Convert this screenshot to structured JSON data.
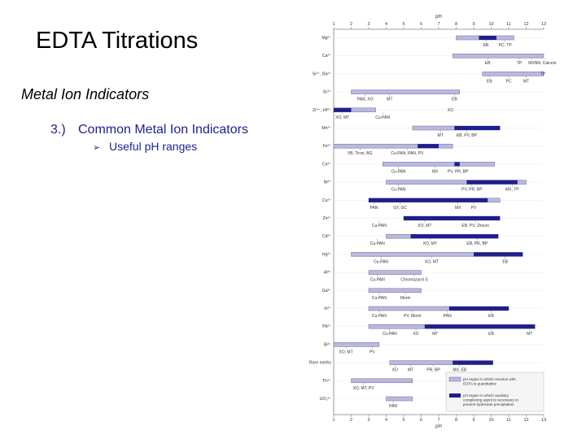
{
  "slide": {
    "title": "EDTA Titrations",
    "subtitle": "Metal Ion Indicators",
    "point_number": "3.)",
    "point_text": "Common Metal Ion Indicators",
    "bullet_text": "Useful pH ranges"
  },
  "chart_data": {
    "type": "range-bar",
    "axis_label_top": "pH",
    "axis_label_bottom": "pH",
    "x_ticks": [
      1,
      2,
      3,
      4,
      5,
      6,
      7,
      8,
      9,
      10,
      11,
      12,
      13
    ],
    "xlim": [
      1,
      13
    ],
    "rows": [
      {
        "ion": "Mg²⁺",
        "bars": [
          {
            "from": 8,
            "to": 11.3,
            "kind": "light"
          },
          {
            "from": 9.3,
            "to": 10.3,
            "kind": "indicator"
          }
        ],
        "labels": [
          {
            "text": "EB",
            "x": 9.7,
            "pos": "below"
          },
          {
            "text": "PC, TP",
            "x": 10.8,
            "pos": "below"
          }
        ]
      },
      {
        "ion": "Ca²⁺",
        "bars": [
          {
            "from": 7.8,
            "to": 13,
            "kind": "light"
          }
        ],
        "labels": [
          {
            "text": "EB",
            "x": 9.8,
            "pos": "below"
          },
          {
            "text": "TP",
            "x": 11.6,
            "pos": "below"
          },
          {
            "text": "MX",
            "x": 12.3,
            "pos": "below"
          },
          {
            "text": "NN, Calcein",
            "x": 13.1,
            "pos": "below"
          }
        ]
      },
      {
        "ion": "Sr²⁺, Ba²⁺",
        "bars": [
          {
            "from": 9.5,
            "to": 13,
            "kind": "light"
          }
        ],
        "labels": [
          {
            "text": "TP",
            "x": 12.8,
            "pos": "right"
          },
          {
            "text": "EB",
            "x": 9.9,
            "pos": "below"
          },
          {
            "text": "PC",
            "x": 11,
            "pos": "below"
          },
          {
            "text": "MT",
            "x": 12,
            "pos": "below"
          }
        ]
      },
      {
        "ion": "Sc³⁺",
        "bars": [
          {
            "from": 2,
            "to": 8.2,
            "kind": "light"
          }
        ],
        "labels": [
          {
            "text": "PAN, XO",
            "x": 2.8,
            "pos": "below"
          },
          {
            "text": "MT",
            "x": 4.2,
            "pos": "below"
          },
          {
            "text": "EB",
            "x": 7.9,
            "pos": "below"
          }
        ]
      },
      {
        "ion": "Zr⁴⁺, Hf⁴⁺",
        "bars": [
          {
            "from": 1,
            "to": 3.4,
            "kind": "light"
          },
          {
            "from": 1,
            "to": 2,
            "kind": "indicator"
          }
        ],
        "labels": [
          {
            "text": "XO, MT",
            "x": 1.5,
            "pos": "below"
          },
          {
            "text": "Cu-PAN",
            "x": 3.8,
            "pos": "below"
          },
          {
            "text": "XO",
            "x": 7.5,
            "pos": "right"
          }
        ]
      },
      {
        "ion": "Mn²⁺",
        "bars": [
          {
            "from": 5.5,
            "to": 10.5,
            "kind": "light"
          },
          {
            "from": 7.9,
            "to": 10.5,
            "kind": "indicator"
          }
        ],
        "labels": [
          {
            "text": "MT",
            "x": 7.1,
            "pos": "below"
          },
          {
            "text": "EB, PV, BP",
            "x": 8.6,
            "pos": "below"
          }
        ]
      },
      {
        "ion": "Fe³⁺",
        "bars": [
          {
            "from": 1,
            "to": 7.8,
            "kind": "light"
          },
          {
            "from": 5.8,
            "to": 7,
            "kind": "indicator"
          }
        ],
        "labels": [
          {
            "text": "VB, Tiron, BG",
            "x": 2.5,
            "pos": "below"
          },
          {
            "text": "Cu-PAN, PAN, PV",
            "x": 5.2,
            "pos": "below"
          }
        ]
      },
      {
        "ion": "Co²⁺",
        "bars": [
          {
            "from": 3.8,
            "to": 10.2,
            "kind": "light"
          },
          {
            "from": 7.9,
            "to": 8.2,
            "kind": "indicator"
          }
        ],
        "labels": [
          {
            "text": "Cu-PAN",
            "x": 4.7,
            "pos": "below"
          },
          {
            "text": "MX",
            "x": 6.8,
            "pos": "below"
          },
          {
            "text": "PV, PR, BP",
            "x": 8.1,
            "pos": "below"
          }
        ]
      },
      {
        "ion": "Ni²⁺",
        "bars": [
          {
            "from": 4,
            "to": 12,
            "kind": "light"
          },
          {
            "from": 8.6,
            "to": 11.5,
            "kind": "indicator"
          }
        ],
        "labels": [
          {
            "text": "Cu-PAN",
            "x": 4.7,
            "pos": "below"
          },
          {
            "text": "PV, PR, BP",
            "x": 8.9,
            "pos": "below"
          },
          {
            "text": "MX, TP",
            "x": 11.2,
            "pos": "below"
          }
        ]
      },
      {
        "ion": "Cu²⁺",
        "bars": [
          {
            "from": 3,
            "to": 10.5,
            "kind": "light"
          },
          {
            "from": 3,
            "to": 9.8,
            "kind": "indicator"
          }
        ],
        "labels": [
          {
            "text": "PAN",
            "x": 3.3,
            "pos": "below"
          },
          {
            "text": "GT, GC",
            "x": 4.8,
            "pos": "below"
          },
          {
            "text": "MX",
            "x": 8.1,
            "pos": "below"
          },
          {
            "text": "PV",
            "x": 9,
            "pos": "below"
          }
        ]
      },
      {
        "ion": "Zn²⁺",
        "bars": [
          {
            "from": 5,
            "to": 10.5,
            "kind": "light"
          },
          {
            "from": 5,
            "to": 10.5,
            "kind": "indicator"
          }
        ],
        "labels": [
          {
            "text": "Cu-PAN",
            "x": 3.6,
            "pos": "below"
          },
          {
            "text": "XO, MT",
            "x": 6.2,
            "pos": "below"
          },
          {
            "text": "EB, PV, Zincon",
            "x": 9.1,
            "pos": "below"
          }
        ]
      },
      {
        "ion": "Cd²⁺",
        "bars": [
          {
            "from": 4,
            "to": 10.4,
            "kind": "light"
          },
          {
            "from": 5.4,
            "to": 10.4,
            "kind": "indicator"
          }
        ],
        "labels": [
          {
            "text": "Cu-PAN",
            "x": 3.5,
            "pos": "below"
          },
          {
            "text": "XO, MT",
            "x": 6.5,
            "pos": "below"
          },
          {
            "text": "EB, PR, BP",
            "x": 9.2,
            "pos": "below"
          }
        ]
      },
      {
        "ion": "Hg²⁺",
        "bars": [
          {
            "from": 2,
            "to": 11.8,
            "kind": "light"
          },
          {
            "from": 9,
            "to": 11.8,
            "kind": "indicator"
          }
        ],
        "labels": [
          {
            "text": "EB",
            "x": 10.8,
            "pos": "below"
          },
          {
            "text": "Cu-PAN",
            "x": 3.7,
            "pos": "below"
          },
          {
            "text": "XO, MT",
            "x": 6.6,
            "pos": "below"
          }
        ]
      },
      {
        "ion": "Al³⁺",
        "bars": [
          {
            "from": 3,
            "to": 6,
            "kind": "light"
          }
        ],
        "labels": [
          {
            "text": "Cu-PAN",
            "x": 3.5,
            "pos": "below"
          },
          {
            "text": "Chromazurol S",
            "x": 5.6,
            "pos": "below"
          }
        ]
      },
      {
        "ion": "Ga³⁺",
        "bars": [
          {
            "from": 3,
            "to": 6,
            "kind": "light"
          }
        ],
        "labels": [
          {
            "text": "Cu-PAN",
            "x": 3.6,
            "pos": "below"
          },
          {
            "text": "Morin",
            "x": 5.1,
            "pos": "below"
          }
        ]
      },
      {
        "ion": "In³⁺",
        "bars": [
          {
            "from": 3,
            "to": 11,
            "kind": "light"
          },
          {
            "from": 7.6,
            "to": 11,
            "kind": "indicator"
          }
        ],
        "labels": [
          {
            "text": "Cu-PAN",
            "x": 3.6,
            "pos": "below"
          },
          {
            "text": "PV, Morin",
            "x": 5.5,
            "pos": "below"
          },
          {
            "text": "PAN",
            "x": 7.5,
            "pos": "below"
          },
          {
            "text": "EB",
            "x": 10,
            "pos": "below"
          }
        ]
      },
      {
        "ion": "Pb²⁺",
        "bars": [
          {
            "from": 3,
            "to": 12.5,
            "kind": "light"
          },
          {
            "from": 6.2,
            "to": 12.5,
            "kind": "indicator"
          }
        ],
        "labels": [
          {
            "text": "MT",
            "x": 6.8,
            "pos": "below"
          },
          {
            "text": "Cu-PAN",
            "x": 4.2,
            "pos": "below"
          },
          {
            "text": "XO",
            "x": 5.7,
            "pos": "below"
          },
          {
            "text": "EB",
            "x": 10,
            "pos": "below"
          },
          {
            "text": "MT",
            "x": 12.2,
            "pos": "below"
          }
        ]
      },
      {
        "ion": "Bi³⁺",
        "bars": [
          {
            "from": 1,
            "to": 3.6,
            "kind": "light"
          }
        ],
        "labels": [
          {
            "text": "XO, MT",
            "x": 1.7,
            "pos": "below"
          },
          {
            "text": "PV",
            "x": 3.2,
            "pos": "below"
          }
        ]
      },
      {
        "ion": "Rare earths",
        "bars": [
          {
            "from": 4.2,
            "to": 10.1,
            "kind": "light"
          },
          {
            "from": 7.8,
            "to": 10.1,
            "kind": "indicator"
          }
        ],
        "labels": [
          {
            "text": "XO",
            "x": 4.5,
            "pos": "below"
          },
          {
            "text": "MT",
            "x": 5.4,
            "pos": "below"
          },
          {
            "text": "PR, BP",
            "x": 6.7,
            "pos": "below"
          },
          {
            "text": "MX, EB",
            "x": 8.2,
            "pos": "below"
          }
        ]
      },
      {
        "ion": "Th⁴⁺",
        "bars": [
          {
            "from": 2,
            "to": 5.5,
            "kind": "light"
          }
        ],
        "labels": [
          {
            "text": "XO, MT, PV",
            "x": 2.7,
            "pos": "below"
          }
        ]
      },
      {
        "ion": "UO₂²⁺",
        "bars": [
          {
            "from": 4,
            "to": 5.5,
            "kind": "light"
          }
        ],
        "labels": [
          {
            "text": "PAN",
            "x": 4.4,
            "pos": "below"
          }
        ]
      }
    ],
    "legend": [
      {
        "kind": "light",
        "text": "pH region in which reaction with EDTA is quantitative"
      },
      {
        "kind": "indicator",
        "text": "pH region in which auxiliary complexing agent is necessary to prevent hydroxide precipitation"
      }
    ],
    "colors": {
      "light": "#b9b9dd",
      "light_stroke": "#6a6a9e",
      "dark": "#1e1e8c",
      "axis": "#808080"
    }
  }
}
